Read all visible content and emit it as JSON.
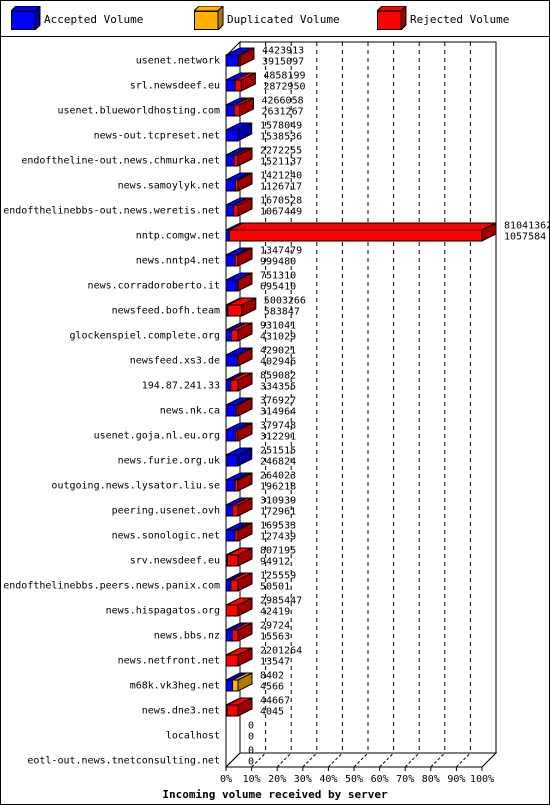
{
  "legend": {
    "accepted": "Accepted Volume",
    "duplicated": "Duplicated Volume",
    "rejected": "Rejected Volume"
  },
  "colors": {
    "accepted": "#0000ff",
    "duplicated": "#ffb000",
    "rejected": "#ff0000",
    "accepted_dark": "#0000a0",
    "duplicated_dark": "#b07800",
    "rejected_dark": "#a00000"
  },
  "chart_data": {
    "type": "bar",
    "orientation": "horizontal",
    "stacked": true,
    "xlabel": "Incoming volume received by server",
    "x_ticks": [
      "0%",
      "10%",
      "20%",
      "30%",
      "40%",
      "50%",
      "60%",
      "70%",
      "80%",
      "90%",
      "100%"
    ],
    "xlim": [
      0,
      100
    ],
    "grid": true,
    "categories": [
      "usenet.network",
      "srl.newsdeef.eu",
      "usenet.blueworldhosting.com",
      "news-out.tcpreset.net",
      "endoftheline-out.news.chmurka.net",
      "news.samoylyk.net",
      "endofthelinebbs-out.news.weretis.net",
      "nntp.comgw.net",
      "news.nntp4.net",
      "news.corradoroberto.it",
      "newsfeed.bofh.team",
      "glockenspiel.complete.org",
      "newsfeed.xs3.de",
      "194.87.241.33",
      "news.nk.ca",
      "usenet.goja.nl.eu.org",
      "news.furie.org.uk",
      "outgoing.news.lysator.liu.se",
      "peering.usenet.ovh",
      "news.sonologic.net",
      "srv.newsdeef.eu",
      "endofthelinebbs.peers.news.panix.com",
      "news.hispagatos.org",
      "news.bbs.nz",
      "news.netfront.net",
      "m68k.vk3heg.net",
      "news.dne3.net",
      "localhost",
      "eotl-out.news.tnetconsulting.net"
    ],
    "totals": [
      4423913,
      4858199,
      4266058,
      1578049,
      2272255,
      1421240,
      1670528,
      81041362,
      1347479,
      751310,
      5003266,
      931041,
      429021,
      859082,
      376927,
      379748,
      251515,
      264023,
      310939,
      169533,
      807195,
      125559,
      2985447,
      29724,
      2201264,
      8402,
      44667,
      0,
      0
    ],
    "accepted": [
      3915097,
      2872950,
      2631267,
      1538536,
      1521137,
      1126717,
      1067449,
      1057584,
      999480,
      695410,
      583847,
      431029,
      402946,
      334355,
      314964,
      312291,
      246824,
      196218,
      172961,
      127439,
      94912,
      50501,
      42419,
      15563,
      13547,
      4566,
      4045,
      0,
      0
    ],
    "duplicated": [
      0,
      0,
      0,
      0,
      0,
      0,
      0,
      0,
      0,
      0,
      0,
      0,
      0,
      0,
      0,
      0,
      0,
      0,
      0,
      0,
      0,
      0,
      0,
      0,
      0,
      3836,
      0,
      0,
      0
    ]
  }
}
